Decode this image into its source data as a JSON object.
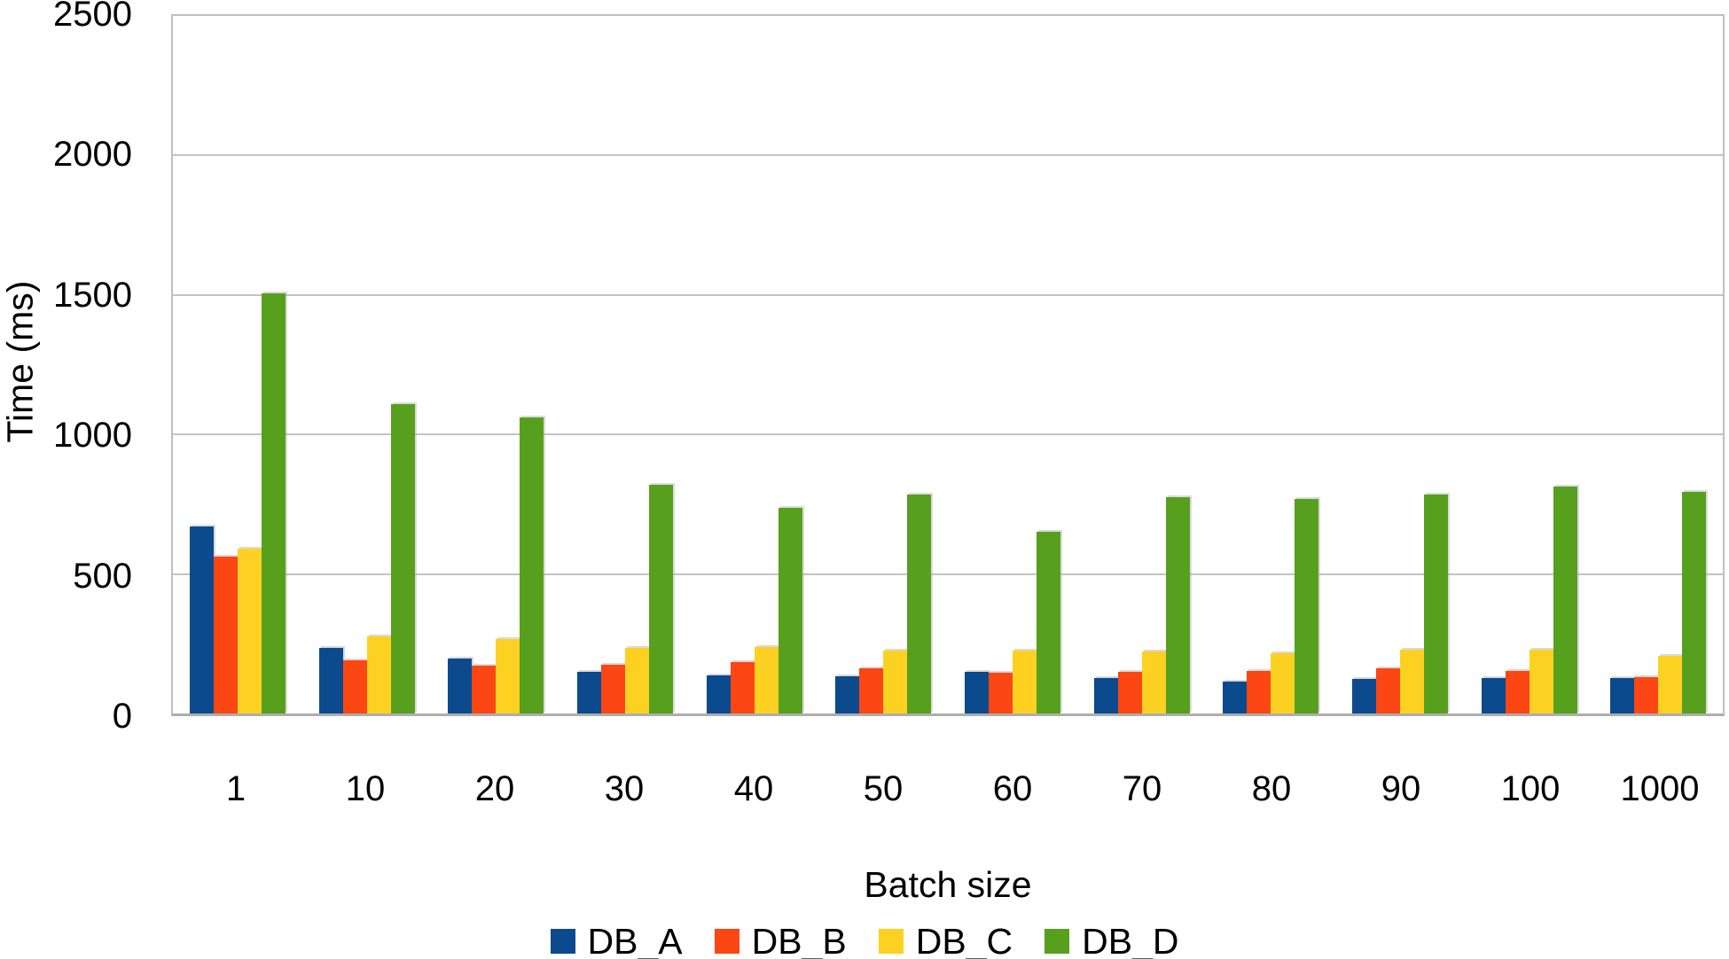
{
  "chart_data": {
    "type": "bar",
    "title": "",
    "categories": [
      "1",
      "10",
      "20",
      "30",
      "40",
      "50",
      "60",
      "70",
      "80",
      "90",
      "100",
      "1000"
    ],
    "series": [
      {
        "name": "DB_A",
        "color": "#0b4a8c",
        "values": [
          670,
          234,
          196,
          149,
          136,
          133,
          149,
          127,
          115,
          124,
          128,
          126
        ]
      },
      {
        "name": "DB_B",
        "color": "#fc4613",
        "values": [
          562,
          190,
          171,
          174,
          184,
          161,
          146,
          149,
          154,
          162,
          151,
          130
        ]
      },
      {
        "name": "DB_C",
        "color": "#fdd122",
        "values": [
          590,
          277,
          266,
          234,
          237,
          225,
          225,
          222,
          215,
          230,
          228,
          206
        ]
      },
      {
        "name": "DB_D",
        "color": "#57a01e",
        "values": [
          1507,
          1108,
          1060,
          820,
          737,
          786,
          652,
          775,
          770,
          784,
          812,
          795
        ]
      }
    ],
    "xlabel": "Batch size",
    "ylabel": "Time (ms)",
    "ylim": [
      0,
      2500
    ],
    "yticks": [
      0,
      500,
      1000,
      1500,
      2000,
      2500
    ],
    "grid": "horizontal",
    "legend_position": "bottom"
  },
  "style_colors": {
    "gridline": "#c3c3c3",
    "frame": "#bfbfbf",
    "baseline": "#aeaeae",
    "text": "#000000",
    "background": "#ffffff"
  }
}
